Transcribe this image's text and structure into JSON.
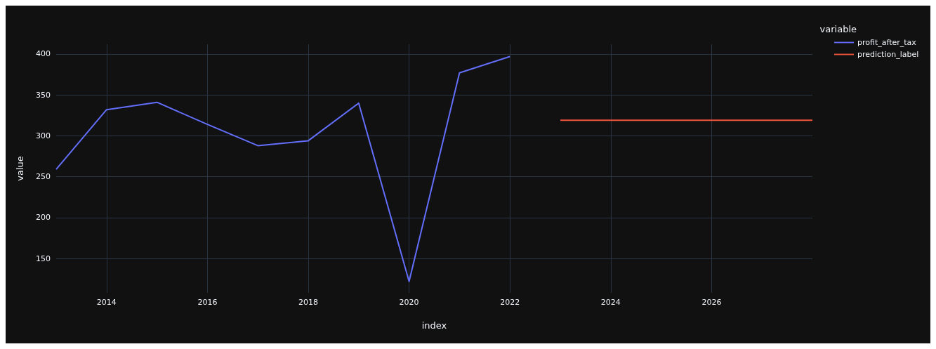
{
  "chart_data": {
    "type": "line",
    "xlabel": "index",
    "ylabel": "value",
    "legend_title": "variable",
    "legend": "top right",
    "grid": true,
    "xlim": [
      2013,
      2028
    ],
    "xticks": [
      2014,
      2016,
      2018,
      2020,
      2022,
      2024,
      2026
    ],
    "ylim": [
      108,
      412
    ],
    "yticks": [
      150,
      200,
      250,
      300,
      350,
      400
    ],
    "series": [
      {
        "name": "profit_after_tax",
        "color": "#636efa",
        "x": [
          2013,
          2014,
          2015,
          2016,
          2017,
          2018,
          2019,
          2020,
          2021,
          2022
        ],
        "values": [
          259,
          332,
          341,
          314,
          288,
          294,
          340,
          122,
          377,
          397
        ]
      },
      {
        "name": "prediction_label",
        "color": "#ef553b",
        "x": [
          2023,
          2024,
          2025,
          2026,
          2027,
          2028
        ],
        "values": [
          319,
          319,
          319,
          319,
          319,
          319
        ]
      }
    ]
  }
}
